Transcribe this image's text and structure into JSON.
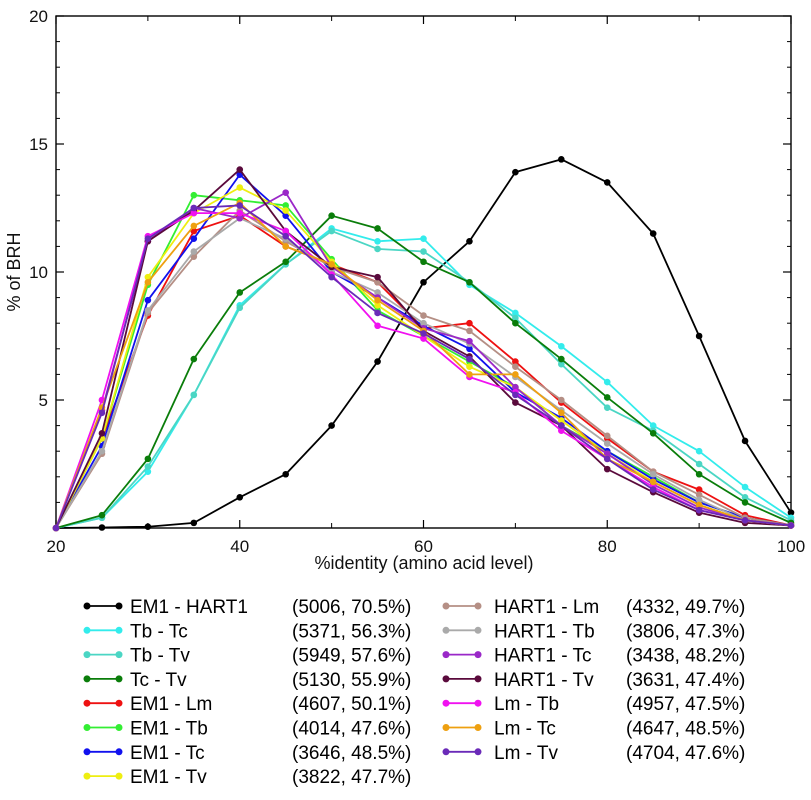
{
  "chart_data": {
    "type": "line",
    "xlabel": "%identity (amino acid level)",
    "ylabel": "% of BRH",
    "xlim": [
      20,
      100
    ],
    "ylim": [
      0,
      20
    ],
    "xticks": [
      20,
      40,
      60,
      80,
      100
    ],
    "yticks": [
      5,
      10,
      15,
      20
    ],
    "xtick_labels": [
      "20",
      "40",
      "60",
      "80",
      "100"
    ],
    "ytick_labels": [
      "5",
      "10",
      "15",
      "20"
    ],
    "grid": false,
    "legend_position": "below",
    "x": [
      20,
      25,
      30,
      35,
      40,
      45,
      50,
      55,
      60,
      65,
      70,
      75,
      80,
      85,
      90,
      95,
      100
    ],
    "series": [
      {
        "name": "EM1 - HART1",
        "stats": "(5006, 70.5%)",
        "color": "#000000",
        "values": [
          0.0,
          0.02,
          0.05,
          0.2,
          1.2,
          2.1,
          4.0,
          6.5,
          9.6,
          11.2,
          13.9,
          14.4,
          13.5,
          11.5,
          7.5,
          3.4,
          0.6
        ]
      },
      {
        "name": "Tb - Tc",
        "stats": "(5371, 56.3%)",
        "color": "#33ecec",
        "values": [
          0.0,
          0.4,
          2.2,
          5.2,
          8.7,
          10.3,
          11.7,
          11.2,
          11.3,
          9.5,
          8.4,
          7.1,
          5.7,
          4.0,
          3.0,
          1.6,
          0.4
        ]
      },
      {
        "name": "Tb - Tv",
        "stats": "(5949, 57.6%)",
        "color": "#4bd6c4",
        "values": [
          0.0,
          0.4,
          2.4,
          5.2,
          8.6,
          10.3,
          11.6,
          10.9,
          10.8,
          9.6,
          8.2,
          6.4,
          4.7,
          3.8,
          2.5,
          1.2,
          0.3
        ]
      },
      {
        "name": "Tc - Tv",
        "stats": "(5130, 55.9%)",
        "color": "#0a7d0a",
        "values": [
          0.0,
          0.5,
          2.7,
          6.6,
          9.2,
          10.4,
          12.2,
          11.7,
          10.4,
          9.6,
          8.0,
          6.6,
          5.1,
          3.7,
          2.1,
          1.0,
          0.2
        ]
      },
      {
        "name": "EM1 - Lm",
        "stats": "(4607, 50.1%)",
        "color": "#ee1111",
        "values": [
          0.0,
          3.5,
          8.3,
          11.6,
          12.2,
          11.0,
          10.3,
          9.6,
          7.8,
          8.0,
          6.5,
          4.9,
          3.5,
          2.2,
          1.5,
          0.5,
          0.1
        ]
      },
      {
        "name": "EM1 - Tb",
        "stats": "(4014, 47.6%)",
        "color": "#33ee33",
        "values": [
          0.0,
          3.5,
          9.5,
          13.0,
          12.8,
          12.6,
          10.5,
          8.5,
          7.5,
          6.5,
          5.5,
          4.0,
          3.0,
          2.0,
          1.0,
          0.4,
          0.1
        ]
      },
      {
        "name": "EM1 - Tc",
        "stats": "(3646, 48.5%)",
        "color": "#1111ee",
        "values": [
          0.0,
          3.2,
          8.9,
          11.3,
          13.8,
          12.2,
          10.0,
          9.0,
          7.9,
          7.0,
          5.3,
          4.3,
          3.0,
          1.9,
          1.0,
          0.4,
          0.1
        ]
      },
      {
        "name": "EM1 - Tv",
        "stats": "(3822, 47.7%)",
        "color": "#eeee11",
        "values": [
          0.0,
          3.5,
          9.8,
          12.3,
          13.3,
          12.4,
          10.4,
          8.7,
          7.5,
          6.3,
          5.5,
          4.2,
          2.9,
          1.8,
          0.9,
          0.3,
          0.1
        ]
      },
      {
        "name": "HART1 - Lm",
        "stats": "(4332, 49.7%)",
        "color": "#b58f85",
        "values": [
          0.0,
          2.9,
          8.4,
          10.6,
          12.4,
          11.2,
          10.2,
          9.6,
          8.3,
          7.7,
          6.3,
          5.0,
          3.6,
          2.2,
          1.3,
          0.4,
          0.1
        ]
      },
      {
        "name": "HART1 - Tb",
        "stats": "(3806, 47.3%)",
        "color": "#aaaaaa",
        "values": [
          0.0,
          3.0,
          8.5,
          10.8,
          12.1,
          11.3,
          10.0,
          9.2,
          8.0,
          7.2,
          5.9,
          4.6,
          3.3,
          2.1,
          1.1,
          0.3,
          0.1
        ]
      },
      {
        "name": "HART1 - Tc",
        "stats": "(3438, 48.2%)",
        "color": "#9a28c8",
        "values": [
          0.0,
          4.6,
          11.2,
          12.5,
          12.1,
          13.1,
          10.2,
          9.0,
          7.8,
          7.3,
          5.5,
          4.0,
          2.9,
          1.7,
          0.8,
          0.3,
          0.1
        ]
      },
      {
        "name": "HART1 - Tv",
        "stats": "(3631, 47.4%)",
        "color": "#5a0a3c",
        "values": [
          0.0,
          3.7,
          11.2,
          12.4,
          14.0,
          11.6,
          10.2,
          9.8,
          7.7,
          6.7,
          4.9,
          4.0,
          2.3,
          1.4,
          0.6,
          0.2,
          0.1
        ]
      },
      {
        "name": "Lm - Tb",
        "stats": "(4957, 47.5%)",
        "color": "#f011f0",
        "values": [
          0.0,
          5.0,
          11.4,
          12.3,
          12.3,
          11.6,
          9.9,
          7.9,
          7.4,
          5.9,
          5.3,
          3.8,
          2.7,
          1.6,
          0.7,
          0.3,
          0.1
        ]
      },
      {
        "name": "Lm - Tc",
        "stats": "(4647, 48.5%)",
        "color": "#eea010",
        "values": [
          0.0,
          4.7,
          9.6,
          11.8,
          12.7,
          11.0,
          10.3,
          8.9,
          7.7,
          6.0,
          6.0,
          4.5,
          2.7,
          1.8,
          0.9,
          0.3,
          0.1
        ]
      },
      {
        "name": "Lm - Tv",
        "stats": "(4704, 47.6%)",
        "color": "#6a2ab8",
        "values": [
          0.0,
          4.5,
          11.3,
          12.5,
          12.6,
          11.4,
          9.8,
          8.4,
          7.6,
          6.6,
          5.2,
          4.0,
          2.7,
          1.5,
          0.7,
          0.3,
          0.1
        ]
      }
    ]
  }
}
